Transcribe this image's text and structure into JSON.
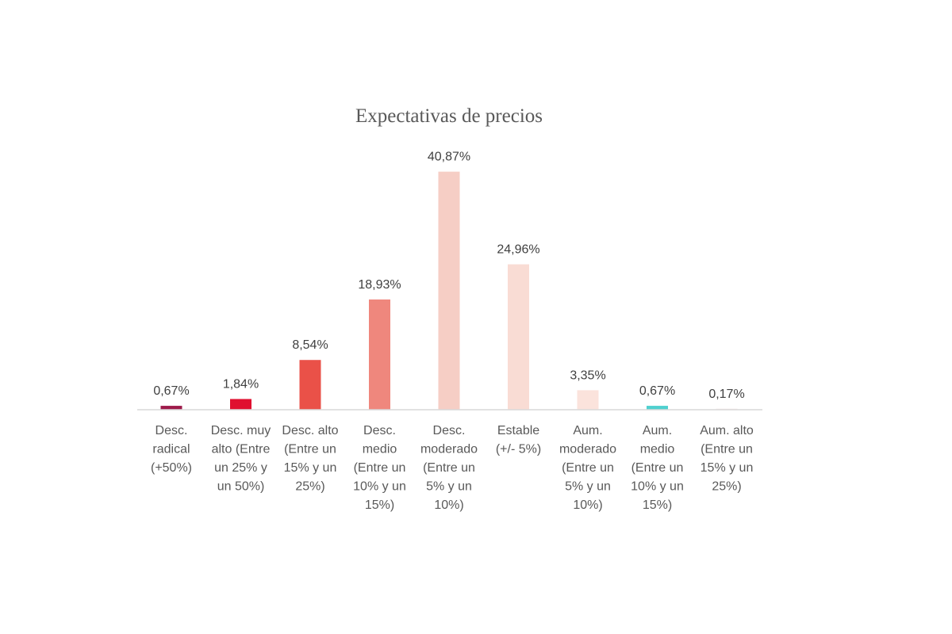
{
  "chart_data": {
    "type": "bar",
    "title": "Expectativas de precios",
    "xlabel": "",
    "ylabel": "",
    "ylim": [
      0,
      45
    ],
    "grid": false,
    "legend": "none",
    "categories": [
      [
        "Desc.",
        "radical",
        "(+50%)"
      ],
      [
        "Desc. muy",
        "alto (Entre",
        "un 25% y",
        "un 50%)"
      ],
      [
        "Desc. alto",
        "(Entre un",
        "15% y un",
        "25%)"
      ],
      [
        "Desc.",
        "medio",
        "(Entre un",
        "10% y un",
        "15%)"
      ],
      [
        "Desc.",
        "moderado",
        "(Entre un",
        "5% y un",
        "10%)"
      ],
      [
        "Estable",
        "(+/- 5%)"
      ],
      [
        "Aum.",
        "moderado",
        "(Entre un",
        "5% y un",
        "10%)"
      ],
      [
        "Aum.",
        "medio",
        "(Entre un",
        "10% y un",
        "15%)"
      ],
      [
        "Aum. alto",
        "(Entre un",
        "15% y un",
        "25%)"
      ]
    ],
    "values": [
      0.67,
      1.84,
      8.54,
      18.93,
      40.87,
      24.96,
      3.35,
      0.67,
      0.17
    ],
    "value_labels": [
      "0,67%",
      "1,84%",
      "8,54%",
      "18,93%",
      "40,87%",
      "24,96%",
      "3,35%",
      "0,67%",
      "0,17%"
    ],
    "colors": [
      "#9e1a4a",
      "#e0102f",
      "#ea5148",
      "#ef877d",
      "#f6cec5",
      "#f9dcd4",
      "#fbe3dc",
      "#4fd0cf",
      "#f2e4e4"
    ],
    "axis_color": "#d9d9d9"
  }
}
